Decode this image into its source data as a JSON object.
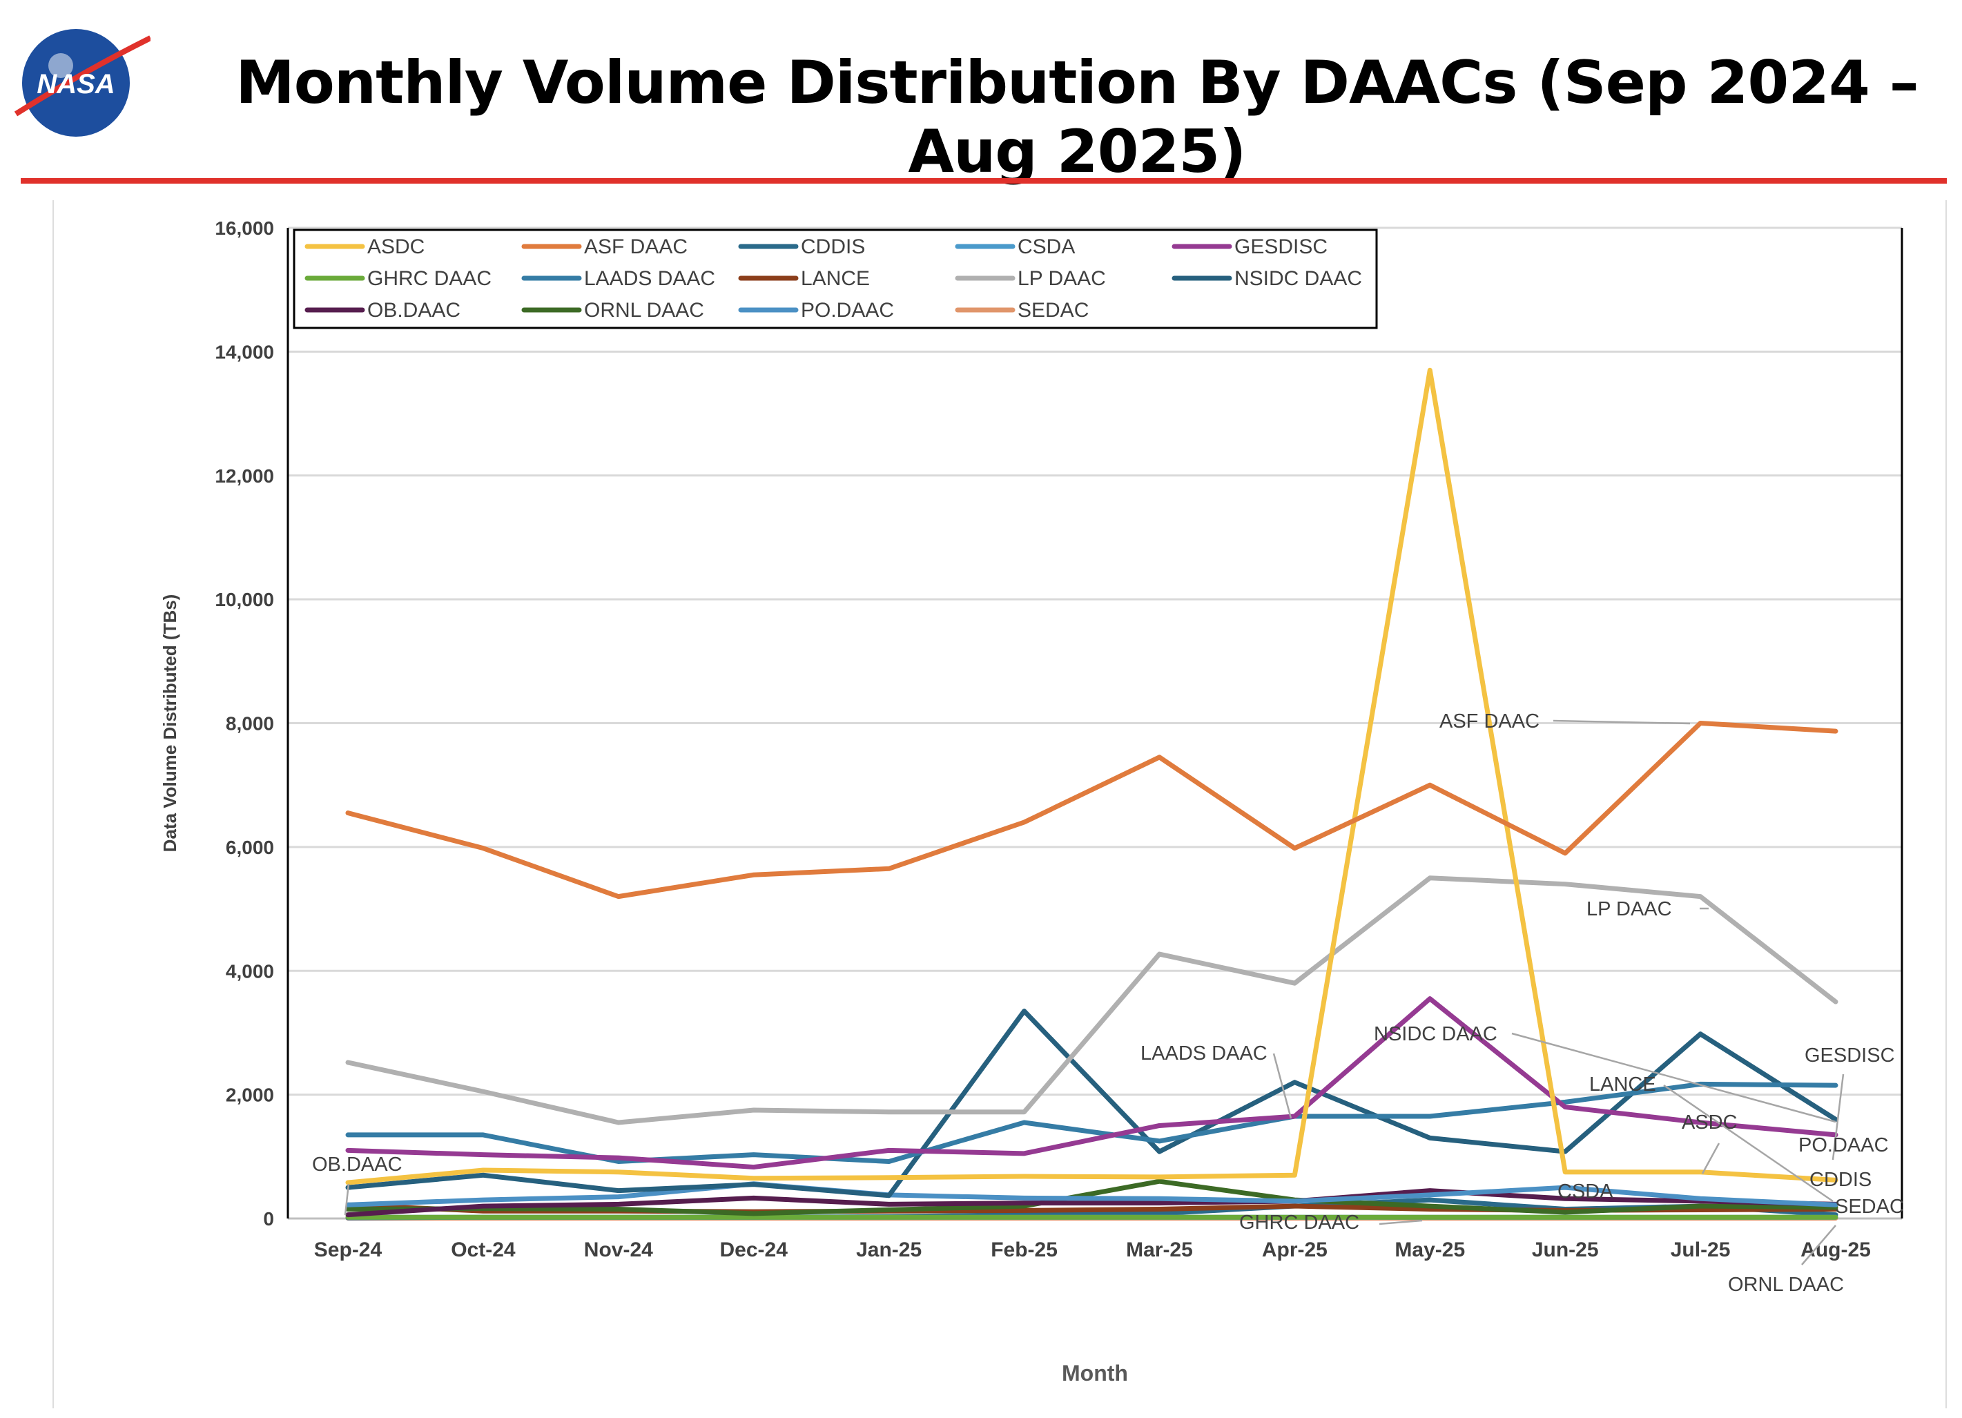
{
  "logo": {
    "text": "NASA"
  },
  "title": "Monthly Volume Distribution By DAACs (Sep 2024 – Aug 2025)",
  "chart_data": {
    "type": "line",
    "title": "Monthly Volume Distribution By DAACs (Sep 2024 – Aug 2025)",
    "xlabel": "Month",
    "ylabel": "Data Volume Distributed (TBs)",
    "ylim": [
      0,
      16000
    ],
    "yticks": [
      0,
      2000,
      4000,
      6000,
      8000,
      10000,
      12000,
      14000,
      16000
    ],
    "ytick_labels": [
      "0",
      "2,000",
      "4,000",
      "6,000",
      "8,000",
      "10,000",
      "12,000",
      "14,000",
      "16,000"
    ],
    "grid": true,
    "legend_position": "top-left",
    "categories": [
      "Sep-24",
      "Oct-24",
      "Nov-24",
      "Dec-24",
      "Jan-25",
      "Feb-25",
      "Mar-25",
      "Apr-25",
      "May-25",
      "Jun-25",
      "Jul-25",
      "Aug-25"
    ],
    "series": [
      {
        "name": "ASDC",
        "color": "#f4c242",
        "values": [
          580,
          780,
          750,
          650,
          660,
          680,
          670,
          700,
          13700,
          750,
          750,
          620
        ]
      },
      {
        "name": "ASF DAAC",
        "color": "#e07b3d",
        "values": [
          6550,
          5980,
          5200,
          5550,
          5650,
          6400,
          7450,
          5980,
          7000,
          5900,
          8000,
          7870
        ]
      },
      {
        "name": "CDDIS",
        "color": "#2a6a8a",
        "values": [
          10,
          20,
          20,
          20,
          30,
          60,
          80,
          200,
          300,
          150,
          200,
          60
        ]
      },
      {
        "name": "CSDA",
        "color": "#4a9acb",
        "values": [
          20,
          20,
          20,
          20,
          20,
          20,
          20,
          20,
          20,
          20,
          20,
          20
        ]
      },
      {
        "name": "GESDISC",
        "color": "#953a92",
        "values": [
          1100,
          1030,
          980,
          830,
          1100,
          1050,
          1500,
          1650,
          3550,
          1800,
          1550,
          1350
        ]
      },
      {
        "name": "GHRC DAAC",
        "color": "#6aaa3a",
        "values": [
          20,
          20,
          20,
          20,
          20,
          20,
          20,
          20,
          20,
          20,
          20,
          20
        ]
      },
      {
        "name": "LAADS DAAC",
        "color": "#357ca5",
        "values": [
          1350,
          1350,
          920,
          1030,
          920,
          1550,
          1250,
          1650,
          1650,
          1880,
          2170,
          2150
        ]
      },
      {
        "name": "LANCE",
        "color": "#8b3e1b",
        "values": [
          220,
          120,
          120,
          110,
          120,
          130,
          150,
          200,
          150,
          130,
          140,
          150
        ]
      },
      {
        "name": "LP DAAC",
        "color": "#b0b0b0",
        "values": [
          2520,
          2050,
          1550,
          1750,
          1720,
          1720,
          4270,
          3800,
          5500,
          5400,
          5200,
          3500
        ]
      },
      {
        "name": "NSIDC DAAC",
        "color": "#26607e",
        "values": [
          500,
          700,
          450,
          550,
          370,
          3350,
          1080,
          2200,
          1300,
          1080,
          2980,
          1600
        ]
      },
      {
        "name": "OB.DAAC",
        "color": "#561d4e",
        "values": [
          60,
          200,
          230,
          330,
          230,
          250,
          250,
          280,
          450,
          320,
          280,
          230
        ]
      },
      {
        "name": "ORNL DAAC",
        "color": "#3c6a25",
        "values": [
          150,
          160,
          150,
          80,
          140,
          200,
          600,
          300,
          200,
          100,
          200,
          180
        ]
      },
      {
        "name": "PO.DAAC",
        "color": "#4b90c4",
        "values": [
          220,
          300,
          350,
          560,
          380,
          330,
          320,
          280,
          380,
          500,
          320,
          220
        ]
      },
      {
        "name": "SEDAC",
        "color": "#e0956a",
        "values": [
          5,
          5,
          5,
          5,
          5,
          5,
          5,
          5,
          5,
          5,
          5,
          5
        ]
      }
    ],
    "annotations": [
      "ASF DAAC",
      "LP DAAC",
      "NSIDC DAAC",
      "LAADS DAAC",
      "GESDISC",
      "LANCE",
      "ASDC",
      "PO.DAAC",
      "CDDIS",
      "CSDA",
      "SEDAC",
      "GHRC DAAC",
      "ORNL DAAC",
      "OB.DAAC"
    ]
  }
}
